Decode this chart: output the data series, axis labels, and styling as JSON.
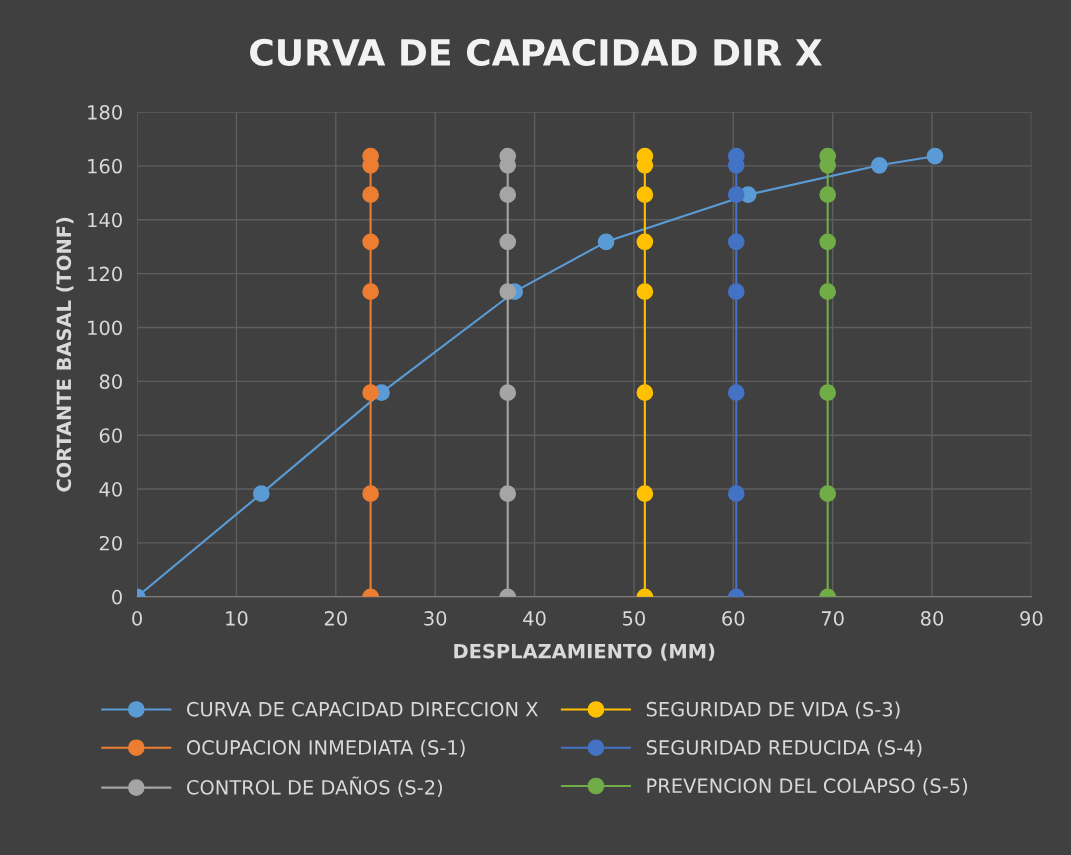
{
  "chart_data": {
    "type": "line",
    "title": "CURVA DE CAPACIDAD DIR X",
    "xlabel": "DESPLAZAMIENTO (MM)",
    "ylabel": "CORTANTE BASAL (TONF)",
    "xlim": [
      0,
      90
    ],
    "xticks": [
      0,
      10,
      20,
      30,
      40,
      50,
      60,
      70,
      80,
      90
    ],
    "ylim": [
      0,
      180
    ],
    "yticks": [
      0,
      20,
      40,
      60,
      80,
      100,
      120,
      140,
      160,
      180
    ],
    "grid": true,
    "legend": "bottom",
    "marker": "circle",
    "line_style": "solid",
    "series": [
      {
        "name": "CURVA DE CAPACIDAD DIRECCION X",
        "color": "#5b9bd5",
        "x": [
          0,
          12.5,
          24.6,
          38.0,
          47.2,
          61.5,
          74.7,
          80.3
        ],
        "values": [
          0,
          38.3,
          75.8,
          113.3,
          131.8,
          149.3,
          160.2,
          163.6
        ]
      },
      {
        "name": "OCUPACION INMEDIATA (S-1)",
        "color": "#ed7d31",
        "x": [
          23.5,
          23.5,
          23.5,
          23.5,
          23.5,
          23.5,
          23.5,
          23.5
        ],
        "values": [
          0,
          38.3,
          75.8,
          113.3,
          131.8,
          149.3,
          160.2,
          163.6
        ]
      },
      {
        "name": "CONTROL DE DAÑOS (S-2)",
        "color": "#a5a5a5",
        "x": [
          37.3,
          37.3,
          37.3,
          37.3,
          37.3,
          37.3,
          37.3,
          37.3
        ],
        "values": [
          0,
          38.3,
          75.8,
          113.3,
          131.8,
          149.3,
          160.2,
          163.6
        ]
      },
      {
        "name": "SEGURIDAD DE VIDA (S-3)",
        "color": "#ffc000",
        "x": [
          51.1,
          51.1,
          51.1,
          51.1,
          51.1,
          51.1,
          51.1,
          51.1
        ],
        "values": [
          0,
          38.3,
          75.8,
          113.3,
          131.8,
          149.3,
          160.2,
          163.6
        ]
      },
      {
        "name": "SEGURIDAD REDUCIDA (S-4)",
        "color": "#4472c4",
        "x": [
          60.3,
          60.3,
          60.3,
          60.3,
          60.3,
          60.3,
          60.3,
          60.3
        ],
        "values": [
          0,
          38.3,
          75.8,
          113.3,
          131.8,
          149.3,
          160.2,
          163.6
        ]
      },
      {
        "name": "PREVENCION DEL COLAPSO (S-5)",
        "color": "#70ad47",
        "x": [
          69.5,
          69.5,
          69.5,
          69.5,
          69.5,
          69.5,
          69.5,
          69.5
        ],
        "values": [
          0,
          38.3,
          75.8,
          113.3,
          131.8,
          149.3,
          160.2,
          163.6
        ]
      }
    ]
  }
}
